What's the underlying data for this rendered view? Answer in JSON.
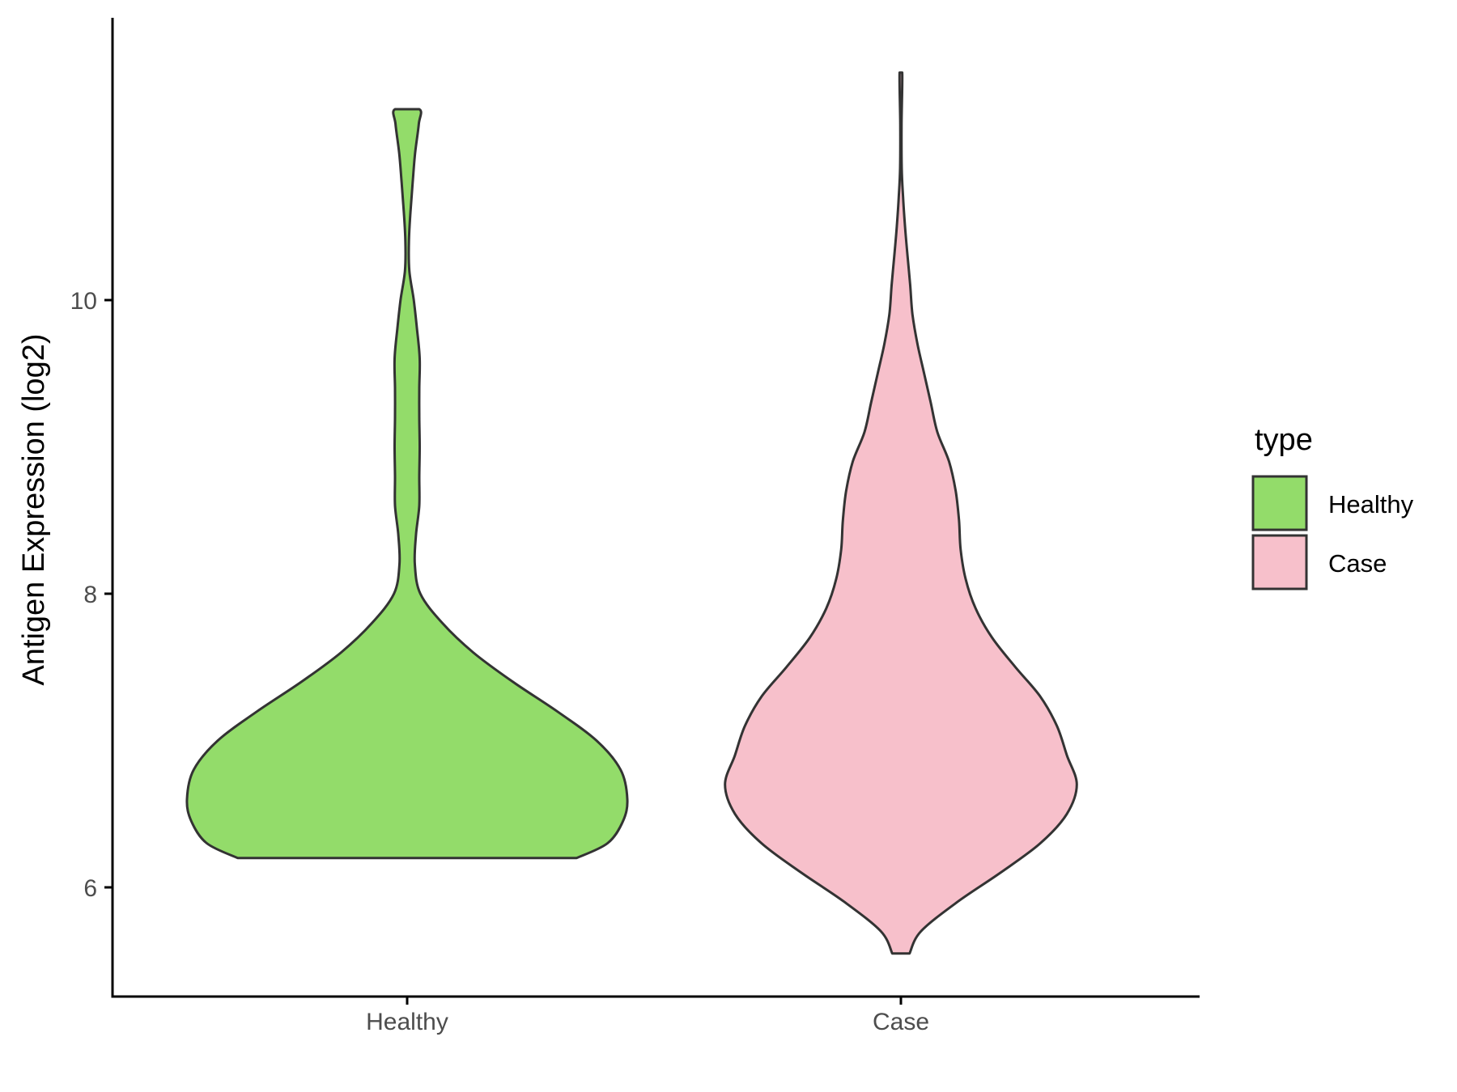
{
  "chart_data": {
    "type": "violin",
    "ylabel": "Antigen Expression (log2)",
    "xlabel": "",
    "categories": [
      "Healthy",
      "Case"
    ],
    "yticks": [
      6,
      8,
      10
    ],
    "ylim": [
      5.2,
      11.9
    ],
    "grid": false,
    "legend": {
      "title": "type",
      "position": "right",
      "entries": [
        {
          "label": "Healthy",
          "color": "#93dc6a"
        },
        {
          "label": "Case",
          "color": "#f7c0cb"
        }
      ]
    },
    "series": [
      {
        "name": "Healthy",
        "color": "#93dc6a",
        "y_min": 6.2,
        "y_max": 11.3,
        "density_profile": [
          [
            6.2,
            0.77
          ],
          [
            6.3,
            0.91
          ],
          [
            6.45,
            0.98
          ],
          [
            6.6,
            1.0
          ],
          [
            6.8,
            0.97
          ],
          [
            7.0,
            0.86
          ],
          [
            7.2,
            0.68
          ],
          [
            7.4,
            0.48
          ],
          [
            7.6,
            0.3
          ],
          [
            7.8,
            0.16
          ],
          [
            8.0,
            0.06
          ],
          [
            8.2,
            0.035
          ],
          [
            8.4,
            0.04
          ],
          [
            8.6,
            0.055
          ],
          [
            8.8,
            0.055
          ],
          [
            9.0,
            0.057
          ],
          [
            9.2,
            0.055
          ],
          [
            9.4,
            0.055
          ],
          [
            9.6,
            0.057
          ],
          [
            9.8,
            0.045
          ],
          [
            10.0,
            0.03
          ],
          [
            10.2,
            0.01
          ],
          [
            10.4,
            0.008
          ],
          [
            10.6,
            0.015
          ],
          [
            10.8,
            0.025
          ],
          [
            11.0,
            0.036
          ],
          [
            11.2,
            0.053
          ],
          [
            11.3,
            0.055
          ]
        ]
      },
      {
        "name": "Case",
        "color": "#f7c0cb",
        "y_min": 5.55,
        "y_max": 11.55,
        "density_profile": [
          [
            5.55,
            0.052
          ],
          [
            5.7,
            0.12
          ],
          [
            5.9,
            0.34
          ],
          [
            6.1,
            0.6
          ],
          [
            6.3,
            0.84
          ],
          [
            6.5,
            1.0
          ],
          [
            6.7,
            1.06
          ],
          [
            6.9,
            1.0
          ],
          [
            7.1,
            0.94
          ],
          [
            7.3,
            0.84
          ],
          [
            7.5,
            0.69
          ],
          [
            7.7,
            0.55
          ],
          [
            7.9,
            0.45
          ],
          [
            8.1,
            0.39
          ],
          [
            8.3,
            0.36
          ],
          [
            8.5,
            0.35
          ],
          [
            8.7,
            0.33
          ],
          [
            8.9,
            0.29
          ],
          [
            9.1,
            0.22
          ],
          [
            9.3,
            0.18
          ],
          [
            9.5,
            0.14
          ],
          [
            9.7,
            0.1
          ],
          [
            9.9,
            0.07
          ],
          [
            10.1,
            0.056
          ],
          [
            10.3,
            0.04
          ],
          [
            10.5,
            0.025
          ],
          [
            10.7,
            0.013
          ],
          [
            10.9,
            0.005
          ],
          [
            11.2,
            0.004
          ],
          [
            11.55,
            0.008
          ]
        ]
      }
    ]
  }
}
